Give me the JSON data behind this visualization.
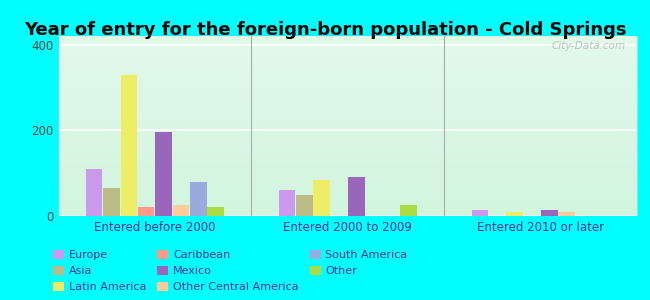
{
  "title": "Year of entry for the foreign-born population - Cold Springs",
  "categories": [
    "Entered before 2000",
    "Entered 2000 to 2009",
    "Entered 2010 or later"
  ],
  "series": {
    "Europe": [
      110,
      60,
      15
    ],
    "Asia": [
      65,
      50,
      0
    ],
    "Latin America": [
      330,
      85,
      10
    ],
    "Caribbean": [
      20,
      0,
      0
    ],
    "Mexico": [
      195,
      90,
      15
    ],
    "Other Central America": [
      25,
      0,
      10
    ],
    "South America": [
      80,
      0,
      0
    ],
    "Other": [
      20,
      25,
      0
    ]
  },
  "bar_order": [
    "Europe",
    "Asia",
    "Latin America",
    "Caribbean",
    "Mexico",
    "Other Central America",
    "South America",
    "Other"
  ],
  "colors": {
    "Europe": "#cc99ee",
    "Asia": "#bbbb88",
    "Latin America": "#eeee66",
    "Caribbean": "#ff9988",
    "Mexico": "#9966bb",
    "Other Central America": "#ffcc99",
    "South America": "#99aadd",
    "Other": "#aadd44"
  },
  "background_grad_top": "#e0ffe8",
  "background_grad_bottom": "#ccf5d8",
  "figure_bg": "#00ffff",
  "ylim": [
    0,
    420
  ],
  "yticks": [
    0,
    200,
    400
  ],
  "title_fontsize": 13,
  "watermark": "City-Data.com",
  "legend_order": [
    "Europe",
    "Asia",
    "Latin America",
    "Caribbean",
    "Mexico",
    "Other Central America",
    "South America",
    "Other"
  ]
}
